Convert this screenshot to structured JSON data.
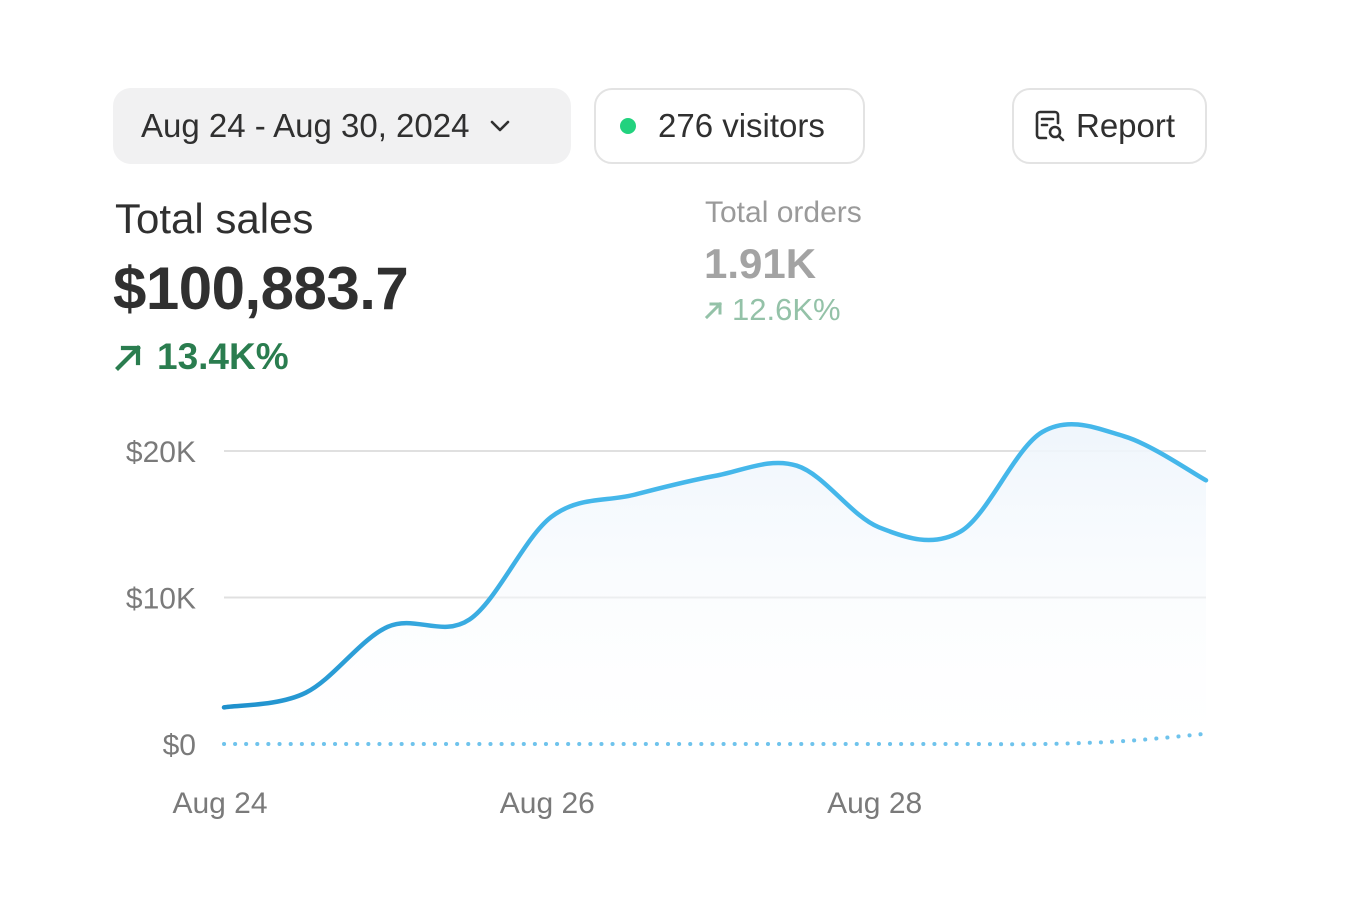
{
  "header": {
    "date_range": "Aug 24 - Aug 30, 2024",
    "visitors": "276 visitors",
    "report_label": "Report"
  },
  "metrics": {
    "total_sales": {
      "label": "Total sales",
      "value": "$100,883.7",
      "change": "13.4K%"
    },
    "total_orders": {
      "label": "Total orders",
      "value": "1.91K",
      "change": "12.6K%"
    }
  },
  "colors": {
    "line": "#45b7ea",
    "line_dark": "#1e90cc",
    "visitors_dot": "#22d27e",
    "positive": "#2a7d4f",
    "positive_muted": "#94c2a8"
  },
  "chart_data": {
    "type": "line",
    "x_ticks": [
      "Aug 24",
      "Aug 26",
      "Aug 28"
    ],
    "y_ticks": [
      "$0",
      "$10K",
      "$20K"
    ],
    "ylim": [
      0,
      20000
    ],
    "x": [
      0,
      0.5,
      1,
      1.5,
      2,
      2.5,
      3,
      3.5,
      4,
      4.5,
      5,
      5.5,
      6
    ],
    "series": [
      {
        "style": "solid",
        "values": [
          2500,
          3500,
          8000,
          8500,
          15500,
          17000,
          18300,
          19000,
          14800,
          14500,
          21300,
          21000,
          18000
        ]
      },
      {
        "style": "dotted",
        "values": [
          0,
          0,
          0,
          0,
          0,
          0,
          0,
          0,
          0,
          0,
          0,
          200,
          700
        ]
      }
    ]
  }
}
